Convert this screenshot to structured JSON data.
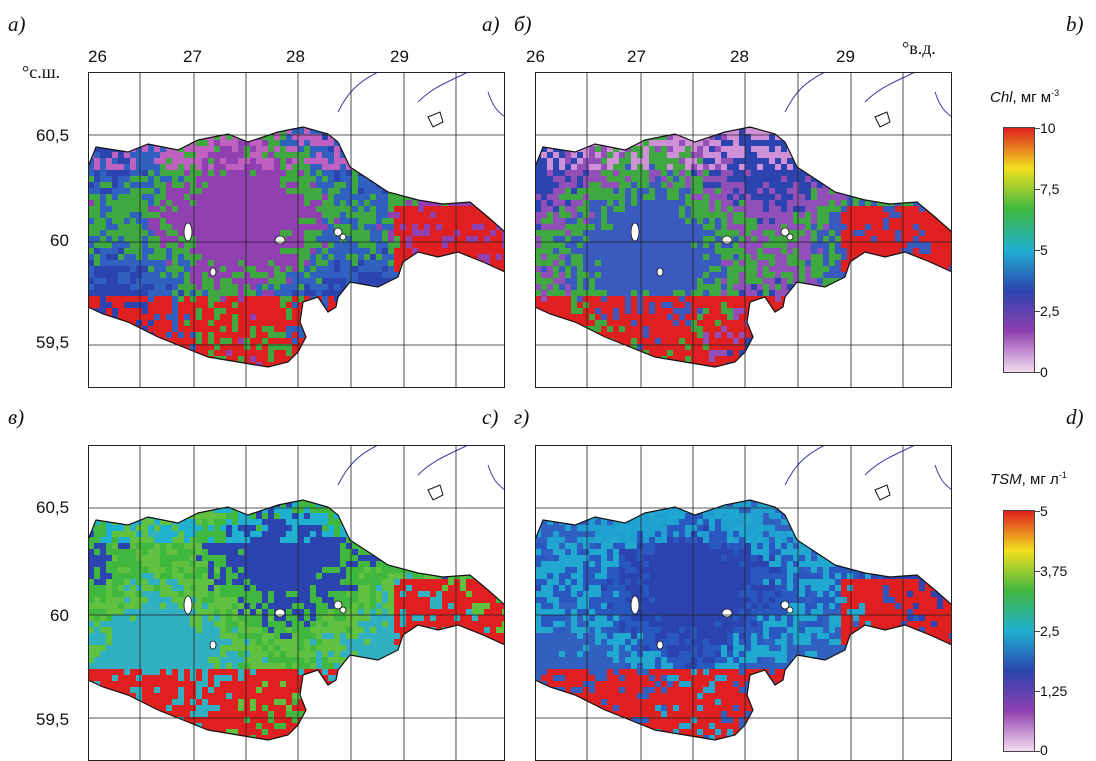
{
  "panels": {
    "a": {
      "left_label": "а)",
      "right_label": "a)"
    },
    "b": {
      "left_label": "б)",
      "right_label": "b)"
    },
    "c": {
      "left_label": "в)",
      "right_label": "c)"
    },
    "d": {
      "left_label": "г)",
      "right_label": "d)"
    }
  },
  "axes": {
    "lon_ticks": [
      "26",
      "27",
      "28",
      "29"
    ],
    "lat_ticks": [
      "60,5",
      "60",
      "59,5"
    ],
    "lat_unit": "°с.ш.",
    "lon_unit": "°в.д."
  },
  "colorbars": {
    "chl": {
      "title_var": "Chl",
      "title_unit": ", мг м",
      "title_sup": "-3",
      "ticks": [
        "10",
        "7,5",
        "5",
        "2,5",
        "0"
      ],
      "gradient": [
        "#e02020",
        "#f0e020",
        "#40b840",
        "#20b0d0",
        "#2c44b0",
        "#9040b0",
        "#f4dcf0"
      ]
    },
    "tsm": {
      "title_var": "TSM",
      "title_unit": ", мг л",
      "title_sup": "-1",
      "ticks": [
        "5",
        "3,75",
        "2,5",
        "1,25",
        "0"
      ],
      "gradient": [
        "#e02020",
        "#f0e020",
        "#40b840",
        "#20b0d0",
        "#2c44b0",
        "#9040b0",
        "#f4dcf0"
      ]
    }
  },
  "colors": {
    "land_line": "#111111",
    "river_line": "#3a3aa0",
    "grid_line": "#222222"
  }
}
